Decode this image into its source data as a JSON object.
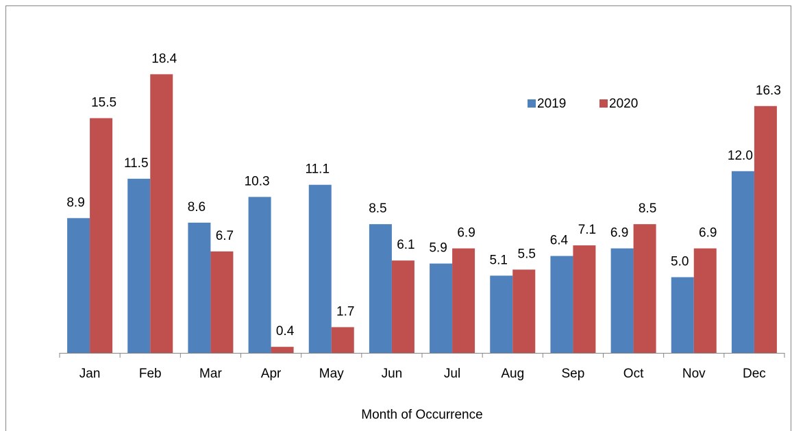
{
  "chart_data": {
    "type": "bar",
    "x_label": "Month of Occurrence",
    "categories": [
      "Jan",
      "Feb",
      "Mar",
      "Apr",
      "May",
      "Jun",
      "Jul",
      "Aug",
      "Sep",
      "Oct",
      "Nov",
      "Dec"
    ],
    "series": [
      {
        "name": "2019",
        "color": "#4f81bd",
        "values": [
          8.9,
          11.5,
          8.6,
          10.3,
          11.1,
          8.5,
          5.9,
          5.1,
          6.4,
          6.9,
          5.0,
          12.0
        ],
        "value_labels": [
          "8.9",
          "11.5",
          "8.6",
          "10.3",
          "11.1",
          "8.5",
          "5.9",
          "5.1",
          "6.4",
          "6.9",
          "5.0",
          "12.0"
        ]
      },
      {
        "name": "2020",
        "color": "#c0504d",
        "values": [
          15.5,
          18.4,
          6.7,
          0.4,
          1.7,
          6.1,
          6.9,
          5.5,
          7.1,
          8.5,
          6.9,
          16.3
        ],
        "value_labels": [
          "15.5",
          "18.4",
          "6.7",
          "0.4",
          "1.7",
          "6.1",
          "6.9",
          "5.5",
          "7.1",
          "8.5",
          "6.9",
          "16.3"
        ]
      }
    ],
    "ylim": [
      0,
      20
    ],
    "legend": "top-right"
  }
}
